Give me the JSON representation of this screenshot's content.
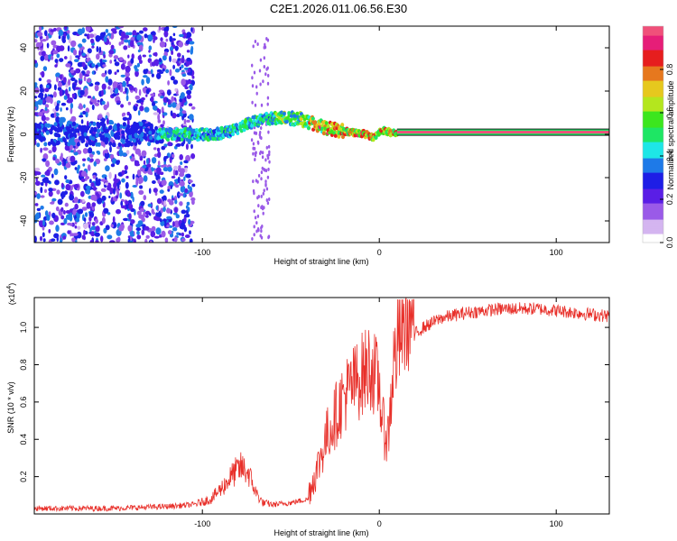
{
  "title": "C2E1.2026.011.06.56.E30",
  "chart_data": [
    {
      "type": "heatmap",
      "name": "spectrogram",
      "xlabel": "Height of straight line (km)",
      "ylabel": "Frequency (Hz)",
      "xlim": [
        -195,
        130
      ],
      "ylim": [
        -50,
        50
      ],
      "x_ticks": [
        -100,
        0,
        100
      ],
      "x_tick_labels": [
        "-100",
        "0",
        "100"
      ],
      "y_ticks": [
        -40,
        -20,
        0,
        20,
        40
      ],
      "y_tick_labels": [
        "-40",
        "-20",
        "0",
        "20",
        "40"
      ],
      "ridge": {
        "description_points_x": [
          -125,
          -110,
          -95,
          -85,
          -75,
          -65,
          -55,
          -45,
          -35,
          -25,
          -15,
          -8,
          -3,
          0,
          5,
          10,
          130
        ],
        "description_points_y": [
          0,
          0,
          0,
          1,
          5,
          7,
          8,
          7,
          4,
          2,
          1,
          0,
          -2,
          2,
          1,
          1,
          1
        ]
      },
      "colorbar": {
        "label": "Normalized spectral amplitude",
        "range": [
          0,
          1
        ],
        "ticks": [
          0,
          0.2,
          0.4,
          0.6,
          0.8
        ],
        "tick_labels": [
          "0.0",
          "0.2",
          "0.4",
          "0.6",
          "0.8"
        ],
        "colors": [
          "#ffffff",
          "#d4b5f0",
          "#9a5ae8",
          "#5a1ee6",
          "#1e1ee6",
          "#1e7ae8",
          "#1ee6e6",
          "#1ee664",
          "#3ce61e",
          "#b4e61e",
          "#e6c81e",
          "#e6781e",
          "#e61e1e",
          "#e61e78",
          "#f0507a"
        ]
      }
    },
    {
      "type": "line",
      "name": "snr",
      "xlabel": "Height of straight line (km)",
      "ylabel": "SNR (10 * v/v)",
      "y_scale_label": "(x10",
      "y_scale_exp": "4",
      "y_scale_close": ")",
      "xlim": [
        -195,
        130
      ],
      "ylim": [
        0,
        1.16
      ],
      "x_ticks": [
        -100,
        0,
        100
      ],
      "x_tick_labels": [
        "-100",
        "0",
        "100"
      ],
      "y_ticks": [
        0.2,
        0.4,
        0.6,
        0.8,
        1.0
      ],
      "y_tick_labels": [
        "0.2",
        "0.4",
        "0.6",
        "0.8",
        "1.0"
      ],
      "color": "#e8302a",
      "envelope_x": [
        -195,
        -150,
        -120,
        -105,
        -95,
        -88,
        -82,
        -78,
        -74,
        -70,
        -66,
        -60,
        -50,
        -40,
        -35,
        -30,
        -25,
        -20,
        -15,
        -10,
        -5,
        0,
        2,
        5,
        8,
        12,
        18,
        25,
        35,
        50,
        70,
        90,
        110,
        130
      ],
      "envelope_y": [
        0.03,
        0.03,
        0.04,
        0.05,
        0.08,
        0.15,
        0.22,
        0.25,
        0.22,
        0.12,
        0.06,
        0.05,
        0.06,
        0.08,
        0.2,
        0.35,
        0.45,
        0.55,
        0.6,
        0.65,
        0.7,
        0.6,
        0.4,
        0.35,
        0.7,
        0.85,
        0.95,
        1.0,
        1.05,
        1.08,
        1.1,
        1.1,
        1.08,
        1.06
      ]
    }
  ]
}
